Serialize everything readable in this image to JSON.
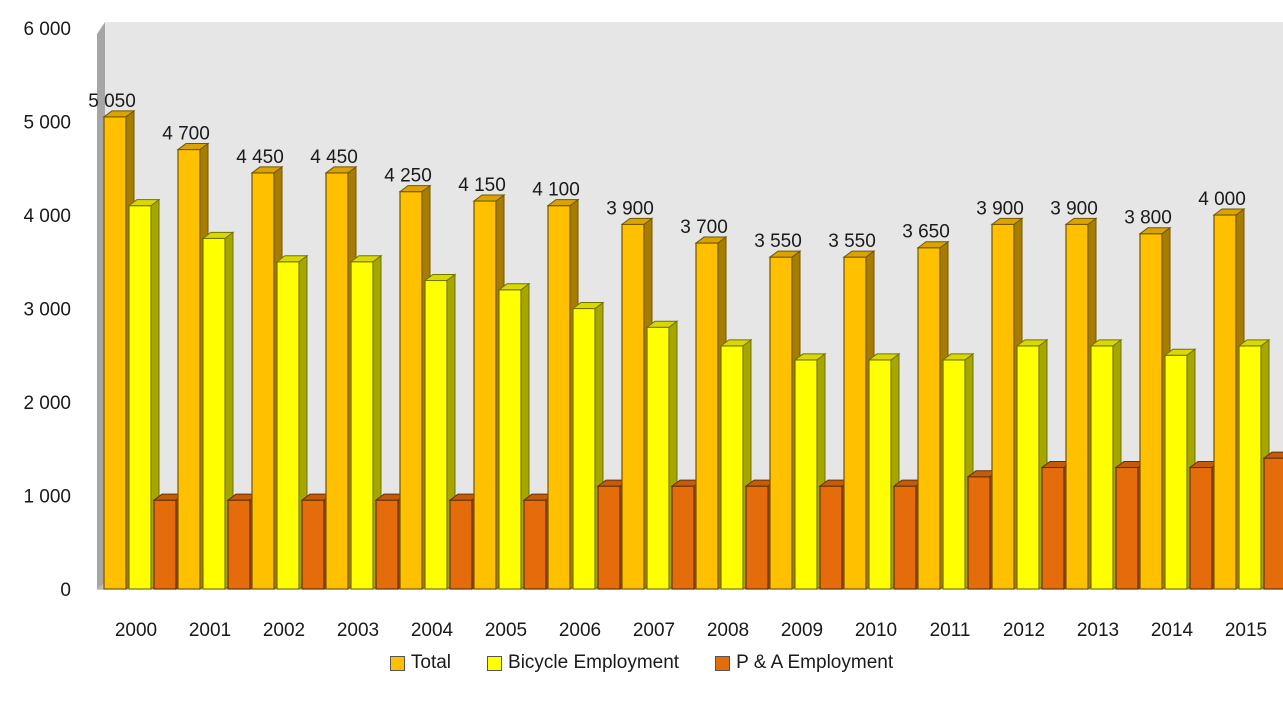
{
  "chart_data": {
    "type": "bar",
    "title": "",
    "xlabel": "",
    "ylabel": "",
    "ylim": [
      0,
      6000
    ],
    "yticks": [
      0,
      1000,
      2000,
      3000,
      4000,
      5000,
      6000
    ],
    "ytick_labels": [
      "0",
      "1 000",
      "2 000",
      "3 000",
      "4 000",
      "5 000",
      "6 000"
    ],
    "categories": [
      "2000",
      "2001",
      "2002",
      "2003",
      "2004",
      "2005",
      "2006",
      "2007",
      "2008",
      "2009",
      "2010",
      "2011",
      "2012",
      "2013",
      "2014",
      "2015"
    ],
    "series": [
      {
        "name": "Total",
        "color": "#FFC000",
        "values": [
          5050,
          4700,
          4450,
          4450,
          4250,
          4150,
          4100,
          3900,
          3700,
          3550,
          3550,
          3650,
          3900,
          3900,
          3800,
          4000
        ],
        "labels": [
          "5 050",
          "4 700",
          "4 450",
          "4 450",
          "4 250",
          "4 150",
          "4 100",
          "3 900",
          "3 700",
          "3 550",
          "3 550",
          "3 650",
          "3 900",
          "3 900",
          "3 800",
          "4 000"
        ]
      },
      {
        "name": "Bicycle Employment",
        "color": "#FFFF00",
        "values": [
          4100,
          3750,
          3500,
          3500,
          3300,
          3200,
          3000,
          2800,
          2600,
          2450,
          2450,
          2450,
          2600,
          2600,
          2500,
          2600
        ]
      },
      {
        "name": "P & A Employment",
        "color": "#E46C0A",
        "values": [
          950,
          950,
          950,
          950,
          950,
          950,
          1100,
          1100,
          1100,
          1100,
          1100,
          1200,
          1300,
          1300,
          1300,
          1400
        ]
      }
    ],
    "grid": false,
    "legend_position": "bottom",
    "style": "3d-clustered-column"
  }
}
